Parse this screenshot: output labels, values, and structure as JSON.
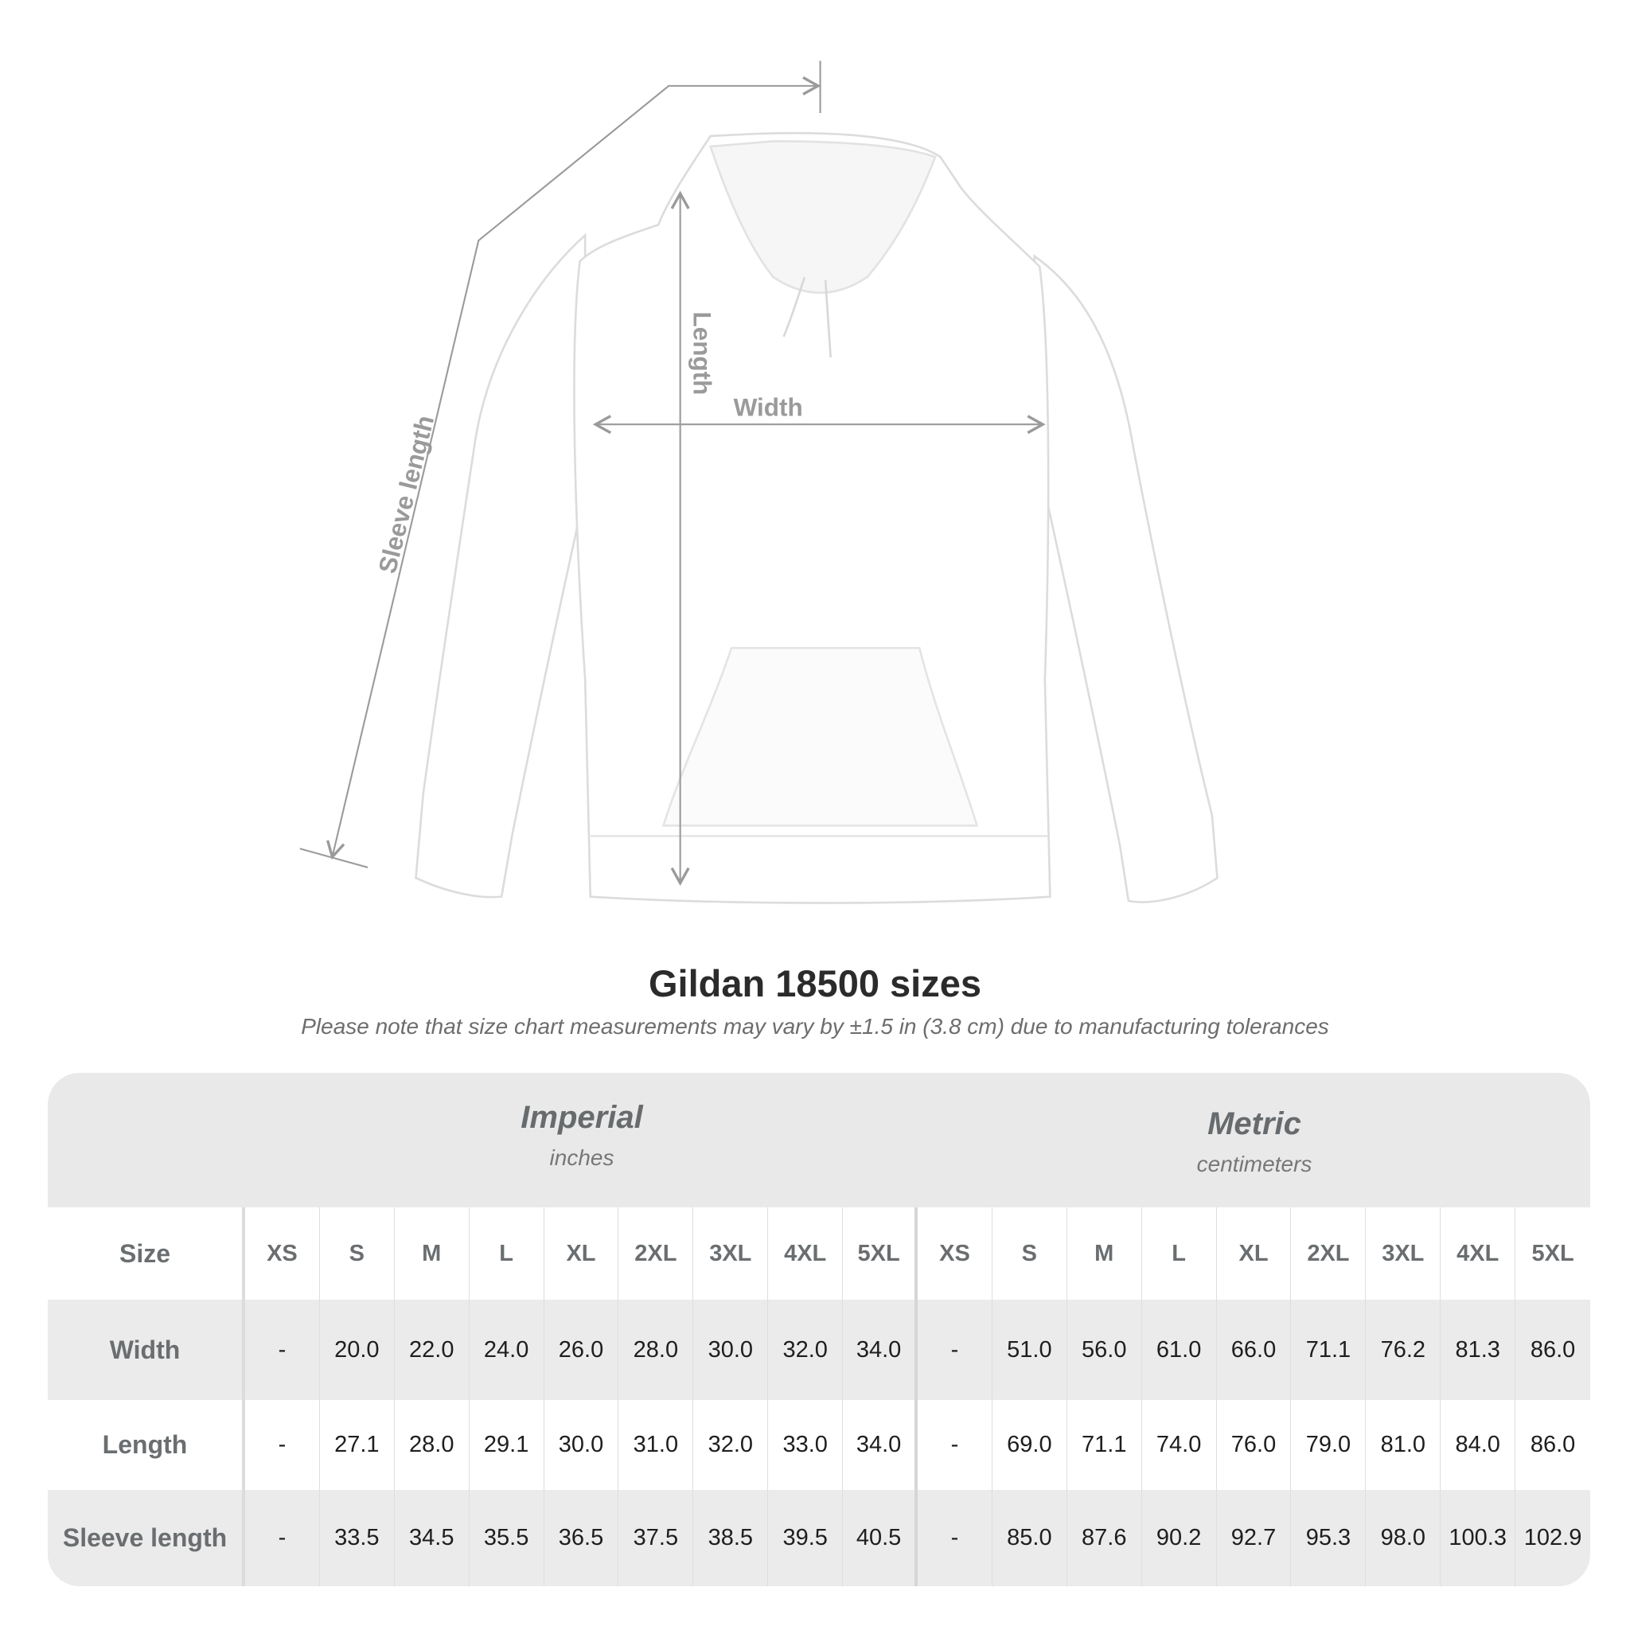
{
  "illustration": {
    "labels": {
      "sleeve": "Sleeve length",
      "length": "Length",
      "width": "Width"
    },
    "garment_color": "#ffffff",
    "measure_line_color": "#9a9a9a"
  },
  "header": {
    "title": "Gildan 18500 sizes",
    "note": "Please note that size chart measurements may vary by ±1.5 in (3.8 cm) due to manufacturing tolerances"
  },
  "table": {
    "systems": [
      {
        "name": "Imperial",
        "unit": "inches"
      },
      {
        "name": "Metric",
        "unit": "centimeters"
      }
    ],
    "size_label": "Size",
    "sizes": [
      "XS",
      "S",
      "M",
      "L",
      "XL",
      "2XL",
      "3XL",
      "4XL",
      "5XL"
    ],
    "rows": [
      {
        "label": "Width",
        "imperial": [
          "-",
          "20.0",
          "22.0",
          "24.0",
          "26.0",
          "28.0",
          "30.0",
          "32.0",
          "34.0"
        ],
        "metric": [
          "-",
          "51.0",
          "56.0",
          "61.0",
          "66.0",
          "71.1",
          "76.2",
          "81.3",
          "86.0"
        ]
      },
      {
        "label": "Length",
        "imperial": [
          "-",
          "27.1",
          "28.0",
          "29.1",
          "30.0",
          "31.0",
          "32.0",
          "33.0",
          "34.0"
        ],
        "metric": [
          "-",
          "69.0",
          "71.1",
          "74.0",
          "76.0",
          "79.0",
          "81.0",
          "84.0",
          "86.0"
        ]
      },
      {
        "label": "Sleeve length",
        "imperial": [
          "-",
          "33.5",
          "34.5",
          "35.5",
          "36.5",
          "37.5",
          "38.5",
          "39.5",
          "40.5"
        ],
        "metric": [
          "-",
          "85.0",
          "87.6",
          "90.2",
          "92.7",
          "95.3",
          "98.0",
          "100.3",
          "102.9"
        ]
      }
    ]
  }
}
